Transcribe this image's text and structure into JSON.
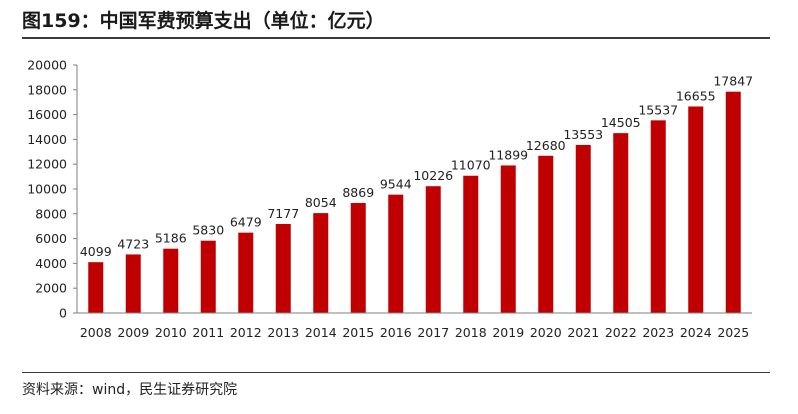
{
  "title": "图159：中国军费预算支出（单位：亿元）",
  "source": "资料来源：wind，民生证券研究院",
  "colors": {
    "bar": "#c00000",
    "axis": "#7f7f7f",
    "rule": "#3a3a3a"
  },
  "chart_data": {
    "type": "bar",
    "categories": [
      "2008",
      "2009",
      "2010",
      "2011",
      "2012",
      "2013",
      "2014",
      "2015",
      "2016",
      "2017",
      "2018",
      "2019",
      "2020",
      "2021",
      "2022",
      "2023",
      "2024",
      "2025"
    ],
    "values": [
      4099,
      4723,
      5186,
      5830,
      6479,
      7177,
      8054,
      8869,
      9544,
      10226,
      11070,
      11899,
      12680,
      13553,
      14505,
      15537,
      16655,
      17847
    ],
    "yticks": [
      0,
      2000,
      4000,
      6000,
      8000,
      10000,
      12000,
      14000,
      16000,
      18000,
      20000
    ],
    "ylim": [
      0,
      20000
    ],
    "grid": false,
    "legend": "none",
    "data_labels": true
  }
}
